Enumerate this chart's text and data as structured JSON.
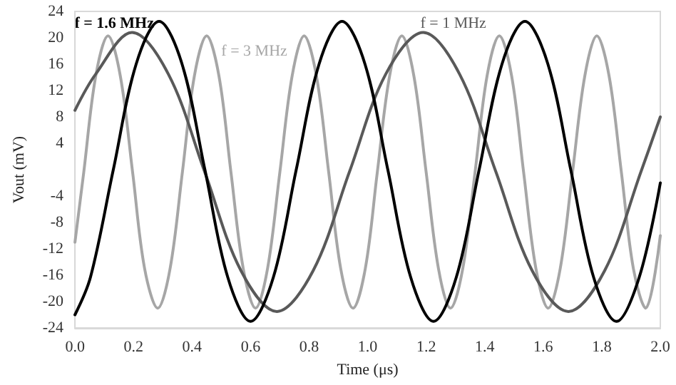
{
  "chart_data": {
    "type": "line",
    "xlabel": "Time (μs)",
    "ylabel": "Vout (mV)",
    "xlim": [
      0,
      2
    ],
    "xticks": [
      {
        "value": 0,
        "label": "0.0"
      },
      {
        "value": 0.2,
        "label": "0.2"
      },
      {
        "value": 0.4,
        "label": "0.4"
      },
      {
        "value": 0.6,
        "label": "0.6"
      },
      {
        "value": 0.8,
        "label": "0.8"
      },
      {
        "value": 1,
        "label": "1.0"
      },
      {
        "value": 1.2,
        "label": "1.2"
      },
      {
        "value": 1.4,
        "label": "1.4"
      },
      {
        "value": 1.6,
        "label": "1.6"
      },
      {
        "value": 1.8,
        "label": "1.8"
      },
      {
        "value": 2,
        "label": "2.0"
      }
    ],
    "ylim": [
      -24,
      24
    ],
    "yticks": [
      -24,
      -20,
      -16,
      -12,
      -8,
      -4,
      4,
      8,
      12,
      16,
      20,
      24
    ],
    "marker": "none",
    "line_style": "solid",
    "legend": false,
    "series": [
      {
        "name": "f = 3 MHz",
        "color": "#a6a6a6",
        "x": [
          0,
          0.03,
          0.071,
          0.113,
          0.155,
          0.197,
          0.238,
          0.283,
          0.325,
          0.367,
          0.408,
          0.45,
          0.492,
          0.533,
          0.575,
          0.617,
          0.658,
          0.7,
          0.742,
          0.783,
          0.825,
          0.867,
          0.908,
          0.95,
          0.992,
          1.033,
          1.075,
          1.117,
          1.158,
          1.2,
          1.242,
          1.283,
          1.325,
          1.367,
          1.408,
          1.45,
          1.492,
          1.533,
          1.575,
          1.617,
          1.658,
          1.7,
          1.742,
          1.783,
          1.825,
          1.867,
          1.908,
          1.95,
          2.0
        ],
        "values": [
          -11,
          -0.4,
          14.2,
          20.3,
          14.2,
          -0.4,
          -15,
          -21,
          -15,
          -0.4,
          14.2,
          20.3,
          14.2,
          -0.4,
          -15,
          -21,
          -15,
          -0.4,
          14.2,
          20.3,
          14.2,
          -0.4,
          -15,
          -21,
          -15,
          -0.4,
          14.2,
          20.3,
          14.2,
          -0.4,
          -15,
          -21,
          -15,
          -0.4,
          14.2,
          20.3,
          14.2,
          -0.4,
          -15,
          -21,
          -15,
          -0.4,
          14.2,
          20.3,
          14.2,
          -0.4,
          -15,
          -21,
          -10
        ]
      },
      {
        "name": "f = 1 MHz",
        "color": "#595959",
        "x": [
          0,
          0.071,
          0.195,
          0.319,
          0.443,
          0.567,
          0.69,
          0.814,
          0.938,
          1.062,
          1.19,
          1.314,
          1.438,
          1.562,
          1.686,
          1.81,
          1.934,
          2.0
        ],
        "values": [
          9,
          14.5,
          20.8,
          14.5,
          -0.3,
          -15.3,
          -21.5,
          -15.3,
          -0.3,
          14.5,
          20.8,
          14.5,
          -0.3,
          -15.3,
          -21.5,
          -15.3,
          -0.3,
          8
        ]
      },
      {
        "name": "f = 1.6 MHz",
        "color": "#000000",
        "x": [
          0,
          0.053,
          0.131,
          0.209,
          0.2875,
          0.366,
          0.444,
          0.522,
          0.6,
          0.678,
          0.756,
          0.834,
          0.9125,
          0.991,
          1.069,
          1.147,
          1.225,
          1.303,
          1.381,
          1.459,
          1.5375,
          1.616,
          1.694,
          1.772,
          1.85,
          1.928,
          2.0
        ],
        "values": [
          -22,
          -16.3,
          0,
          16,
          22.5,
          16,
          0,
          -16.3,
          -23,
          -16.3,
          0,
          16,
          22.5,
          16,
          0,
          -16.3,
          -23,
          -16.3,
          0,
          16,
          22.5,
          16,
          0,
          -16.3,
          -23,
          -16.3,
          -2
        ]
      }
    ]
  }
}
